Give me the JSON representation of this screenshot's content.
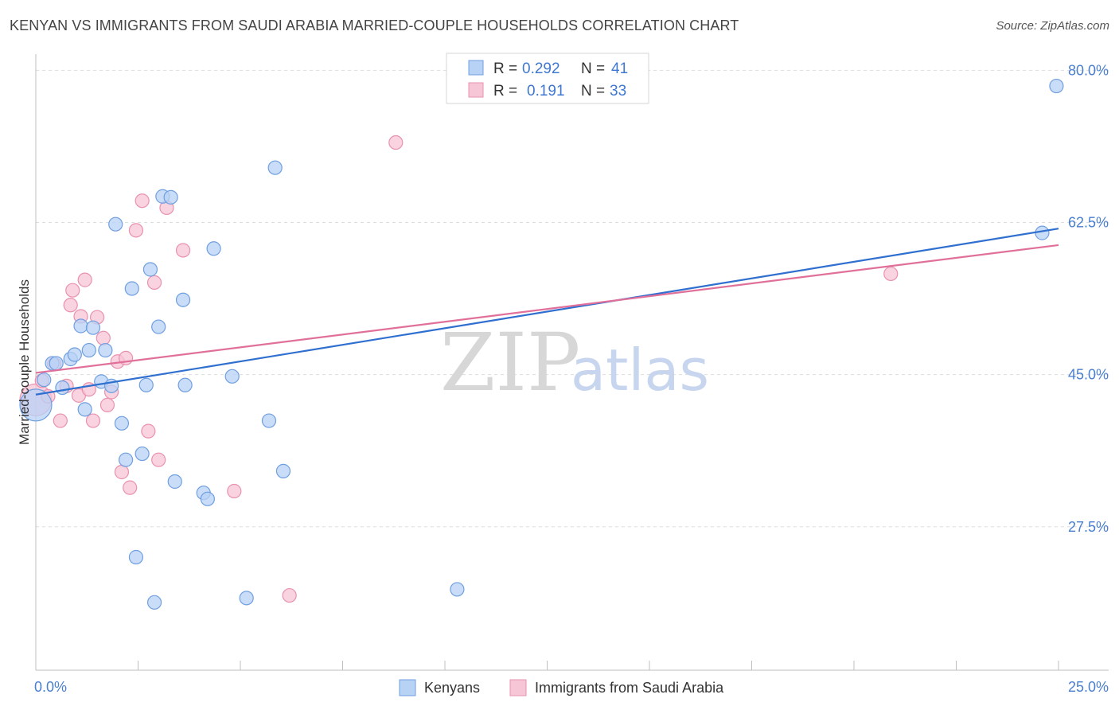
{
  "title": "KENYAN VS IMMIGRANTS FROM SAUDI ARABIA MARRIED-COUPLE HOUSEHOLDS CORRELATION CHART",
  "source": "Source: ZipAtlas.com",
  "watermark": {
    "zip": "ZIP",
    "atlas": "atlas"
  },
  "colors": {
    "blue_fill": "#b8d2f5",
    "blue_stroke": "#6f9fe0",
    "blue_line": "#2f6fcf",
    "pink_fill": "#f7c6d6",
    "pink_stroke": "#e991ae",
    "pink_line": "#e0709a",
    "tick_text": "#4a7fcf",
    "grid": "#dddddd"
  },
  "legend": {
    "row1": {
      "r_label": "R =",
      "r_value": "0.292",
      "n_label": "N =",
      "n_value": "41"
    },
    "row2": {
      "r_label": "R =",
      "r_value": "0.191",
      "n_label": "N =",
      "n_value": "33"
    }
  },
  "bottom_legend": {
    "series1": "Kenyans",
    "series2": "Immigrants from Saudi Arabia"
  },
  "chart_data": {
    "type": "scatter",
    "title": "KENYAN VS IMMIGRANTS FROM SAUDI ARABIA MARRIED-COUPLE HOUSEHOLDS CORRELATION CHART",
    "xlabel": "",
    "ylabel": "Married-couple Households",
    "xlim": [
      0,
      25
    ],
    "ylim": [
      11,
      81.5
    ],
    "x_tick_labels": [
      "0.0%",
      "25.0%"
    ],
    "y_ticks": [
      27.5,
      45.0,
      62.5,
      80.0
    ],
    "y_tick_labels": [
      "27.5%",
      "45.0%",
      "62.5%",
      "80.0%"
    ],
    "grid": true,
    "series": [
      {
        "name": "Kenyans",
        "r": 0.292,
        "n": 41,
        "trend": {
          "x": [
            0,
            25
          ],
          "y": [
            42.7,
            61.8
          ]
        },
        "points": [
          {
            "x": 0.0,
            "y": 41.5,
            "big": true
          },
          {
            "x": 0.2,
            "y": 44.4
          },
          {
            "x": 0.4,
            "y": 46.3
          },
          {
            "x": 0.5,
            "y": 46.3
          },
          {
            "x": 0.65,
            "y": 43.5
          },
          {
            "x": 0.85,
            "y": 46.8
          },
          {
            "x": 0.95,
            "y": 47.3
          },
          {
            "x": 1.1,
            "y": 50.6
          },
          {
            "x": 1.2,
            "y": 41.0
          },
          {
            "x": 1.3,
            "y": 47.8
          },
          {
            "x": 1.4,
            "y": 50.4
          },
          {
            "x": 1.6,
            "y": 44.2
          },
          {
            "x": 1.7,
            "y": 47.8
          },
          {
            "x": 1.85,
            "y": 43.7
          },
          {
            "x": 1.95,
            "y": 62.3
          },
          {
            "x": 2.1,
            "y": 39.4
          },
          {
            "x": 2.2,
            "y": 35.2
          },
          {
            "x": 2.35,
            "y": 54.9
          },
          {
            "x": 2.45,
            "y": 24.0
          },
          {
            "x": 2.6,
            "y": 35.9
          },
          {
            "x": 2.7,
            "y": 43.8
          },
          {
            "x": 2.8,
            "y": 57.1
          },
          {
            "x": 2.9,
            "y": 18.8
          },
          {
            "x": 3.0,
            "y": 50.5
          },
          {
            "x": 3.1,
            "y": 65.5
          },
          {
            "x": 3.3,
            "y": 65.4
          },
          {
            "x": 3.4,
            "y": 32.7
          },
          {
            "x": 3.6,
            "y": 53.6
          },
          {
            "x": 3.65,
            "y": 43.8
          },
          {
            "x": 4.1,
            "y": 31.4
          },
          {
            "x": 4.2,
            "y": 30.7
          },
          {
            "x": 4.35,
            "y": 59.5
          },
          {
            "x": 4.8,
            "y": 44.8
          },
          {
            "x": 5.15,
            "y": 19.3
          },
          {
            "x": 5.7,
            "y": 39.7
          },
          {
            "x": 5.85,
            "y": 68.8
          },
          {
            "x": 6.05,
            "y": 33.9
          },
          {
            "x": 10.3,
            "y": 20.3
          },
          {
            "x": 24.6,
            "y": 61.3
          },
          {
            "x": 24.95,
            "y": 78.2
          }
        ]
      },
      {
        "name": "Immigrants from Saudi Arabia",
        "r": 0.191,
        "n": 33,
        "trend": {
          "x": [
            0,
            25
          ],
          "y": [
            45.2,
            59.9
          ]
        },
        "points": [
          {
            "x": 0.0,
            "y": 42.1,
            "big": true
          },
          {
            "x": 0.15,
            "y": 44.3
          },
          {
            "x": 0.3,
            "y": 42.5
          },
          {
            "x": 0.45,
            "y": 46.2
          },
          {
            "x": 0.6,
            "y": 39.7
          },
          {
            "x": 0.75,
            "y": 43.7
          },
          {
            "x": 0.85,
            "y": 53.0
          },
          {
            "x": 0.9,
            "y": 54.7
          },
          {
            "x": 1.05,
            "y": 42.6
          },
          {
            "x": 1.1,
            "y": 51.7
          },
          {
            "x": 1.2,
            "y": 55.9
          },
          {
            "x": 1.3,
            "y": 43.3
          },
          {
            "x": 1.4,
            "y": 39.7
          },
          {
            "x": 1.5,
            "y": 51.6
          },
          {
            "x": 1.65,
            "y": 49.2
          },
          {
            "x": 1.75,
            "y": 41.5
          },
          {
            "x": 1.85,
            "y": 43.0
          },
          {
            "x": 2.0,
            "y": 46.5
          },
          {
            "x": 2.1,
            "y": 33.8
          },
          {
            "x": 2.2,
            "y": 46.9
          },
          {
            "x": 2.3,
            "y": 32.0
          },
          {
            "x": 2.45,
            "y": 61.6
          },
          {
            "x": 2.6,
            "y": 65.0
          },
          {
            "x": 2.75,
            "y": 38.5
          },
          {
            "x": 2.9,
            "y": 55.6
          },
          {
            "x": 3.0,
            "y": 35.2
          },
          {
            "x": 3.2,
            "y": 64.2
          },
          {
            "x": 3.6,
            "y": 59.3
          },
          {
            "x": 4.85,
            "y": 31.6
          },
          {
            "x": 6.2,
            "y": 19.6
          },
          {
            "x": 8.8,
            "y": 71.7
          },
          {
            "x": 20.9,
            "y": 56.6
          }
        ]
      }
    ]
  }
}
